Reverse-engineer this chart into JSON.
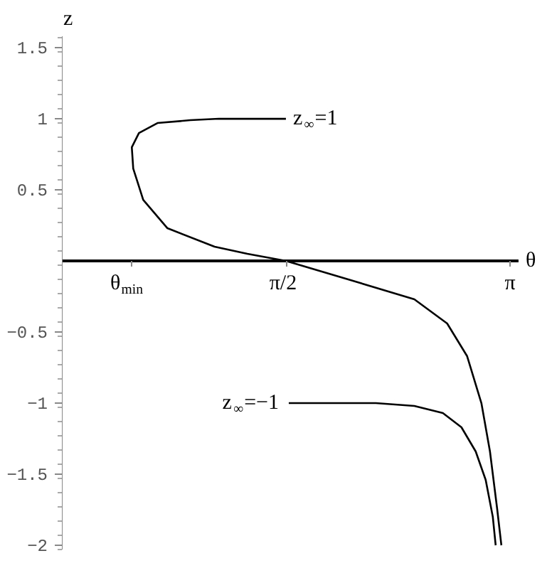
{
  "chart_data": {
    "type": "line",
    "xlabel": "θ",
    "ylabel": "z",
    "xlim": [
      0,
      3.2
    ],
    "ylim": [
      -2.03,
      1.58
    ],
    "xticks": [
      {
        "value": 0.49,
        "label": "θ$_{min}$"
      },
      {
        "value": 1.5708,
        "label": "π/2"
      },
      {
        "value": 3.1416,
        "label": "π"
      }
    ],
    "yticks": [
      {
        "value": -2,
        "label": "−2"
      },
      {
        "value": -1.5,
        "label": "−1.5"
      },
      {
        "value": -1,
        "label": "−1"
      },
      {
        "value": -0.5,
        "label": "−0.5"
      },
      0.5,
      1,
      1.5
    ],
    "series": [
      {
        "color": "#000000",
        "x": [
          1.57,
          1.3,
          1.1,
          0.9,
          0.67,
          0.54,
          0.49,
          0.5,
          0.57,
          0.74,
          1.07,
          1.3,
          1.57,
          2.04,
          2.47,
          2.7,
          2.84,
          2.94,
          3.0,
          3.05,
          3.08
        ],
        "values": [
          1.0,
          1.0,
          1.0,
          0.99,
          0.97,
          0.9,
          0.8,
          0.65,
          0.43,
          0.23,
          0.1,
          0.05,
          0.0,
          -0.14,
          -0.27,
          -0.44,
          -0.67,
          -1.0,
          -1.34,
          -1.74,
          -2.0
        ]
      },
      {
        "color": "#000000",
        "x": [
          1.59,
          2.0,
          2.2,
          2.47,
          2.67,
          2.8,
          2.9,
          2.97,
          3.02,
          3.04
        ],
        "values": [
          -1.0,
          -1.0,
          -1.0,
          -1.02,
          -1.07,
          -1.17,
          -1.34,
          -1.54,
          -1.8,
          -2.0
        ]
      }
    ],
    "annotations": [
      {
        "text": "z$_{∞}$=1",
        "x": 1.57,
        "y": 1
      },
      {
        "text": "z$_{∞}$=−1",
        "x": 1.59,
        "y": -1
      }
    ]
  }
}
